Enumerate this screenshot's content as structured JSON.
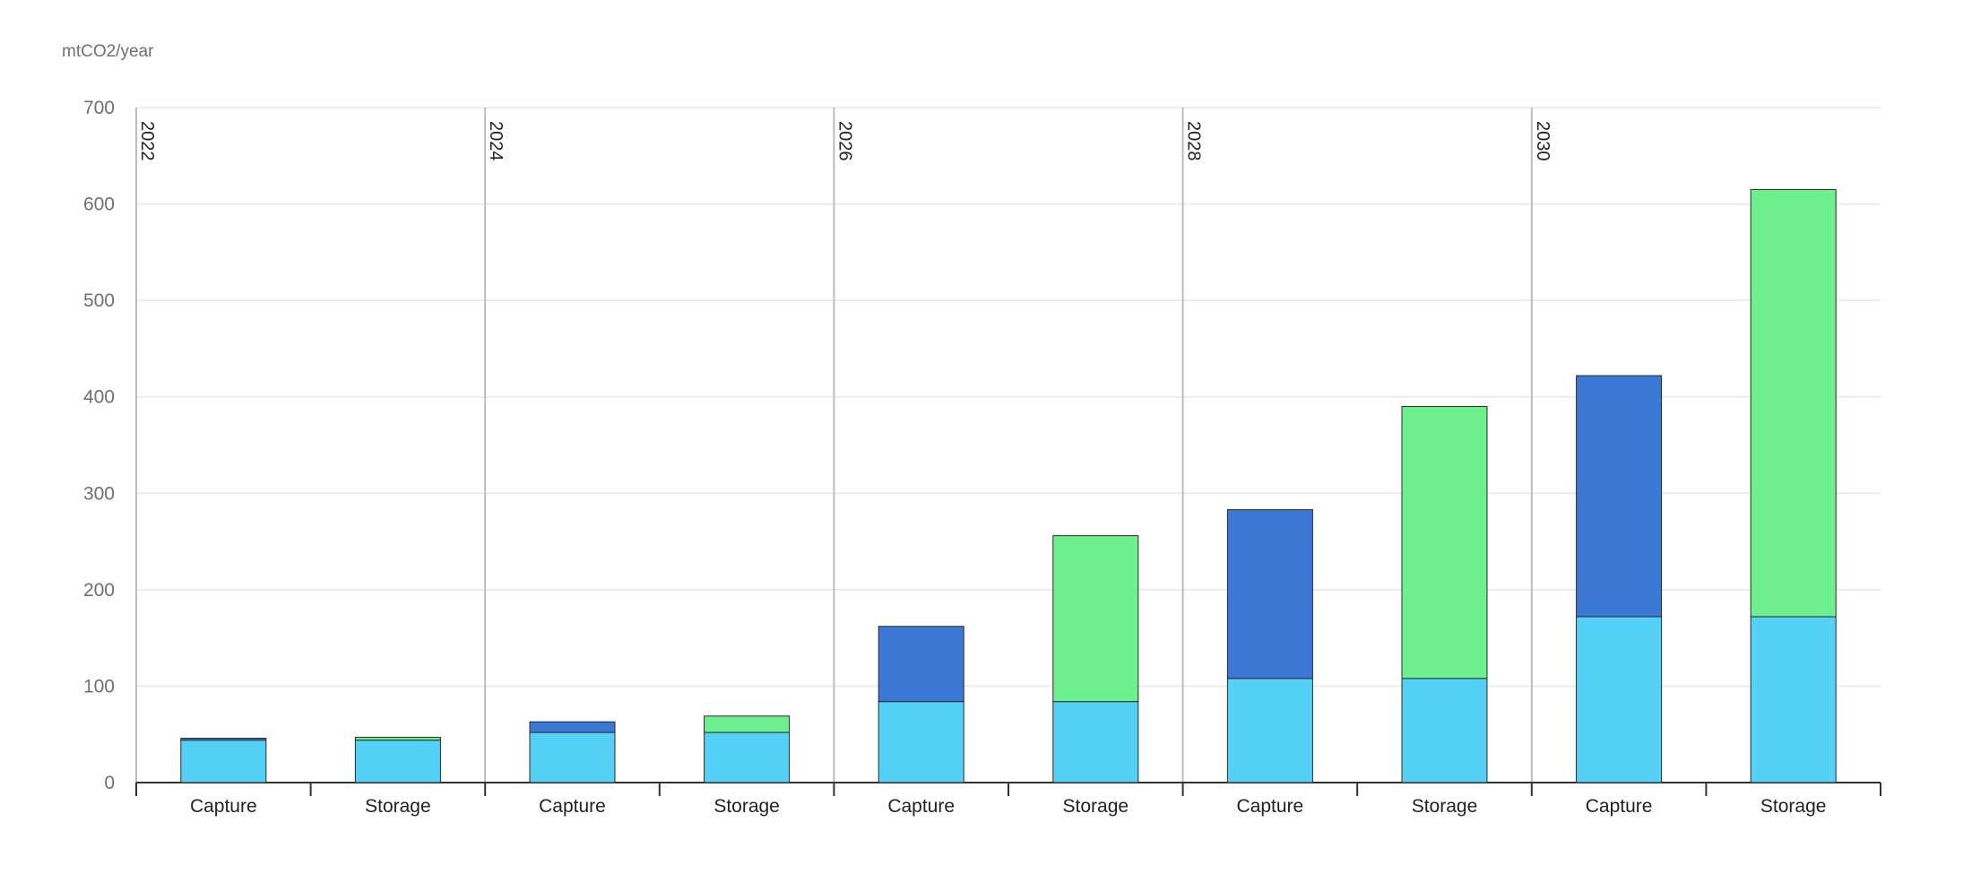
{
  "chart_data": {
    "type": "bar",
    "stacked": true,
    "unit_label": "mtCO2/year",
    "groups": [
      "2022",
      "2024",
      "2026",
      "2028",
      "2030"
    ],
    "categories_per_group": [
      "Capture",
      "Storage"
    ],
    "ylim": [
      0,
      700
    ],
    "yticks": [
      0,
      100,
      200,
      300,
      400,
      500,
      600,
      700
    ],
    "grid": true,
    "colors": {
      "base": "#55d0f7",
      "capture_top": "#3b78d5",
      "storage_top": "#6ff08e",
      "grid": "#ececec",
      "separator": "#bdbdbd",
      "axis": "#333333"
    },
    "bars": [
      {
        "group": "2022",
        "category": "Capture",
        "segments": [
          44,
          2
        ]
      },
      {
        "group": "2022",
        "category": "Storage",
        "segments": [
          44,
          3
        ]
      },
      {
        "group": "2024",
        "category": "Capture",
        "segments": [
          52,
          11
        ]
      },
      {
        "group": "2024",
        "category": "Storage",
        "segments": [
          52,
          17
        ]
      },
      {
        "group": "2026",
        "category": "Capture",
        "segments": [
          84,
          78
        ]
      },
      {
        "group": "2026",
        "category": "Storage",
        "segments": [
          84,
          172
        ]
      },
      {
        "group": "2028",
        "category": "Capture",
        "segments": [
          108,
          175
        ]
      },
      {
        "group": "2028",
        "category": "Storage",
        "segments": [
          108,
          282
        ]
      },
      {
        "group": "2030",
        "category": "Capture",
        "segments": [
          172,
          250
        ]
      },
      {
        "group": "2030",
        "category": "Storage",
        "segments": [
          172,
          443
        ]
      }
    ]
  }
}
